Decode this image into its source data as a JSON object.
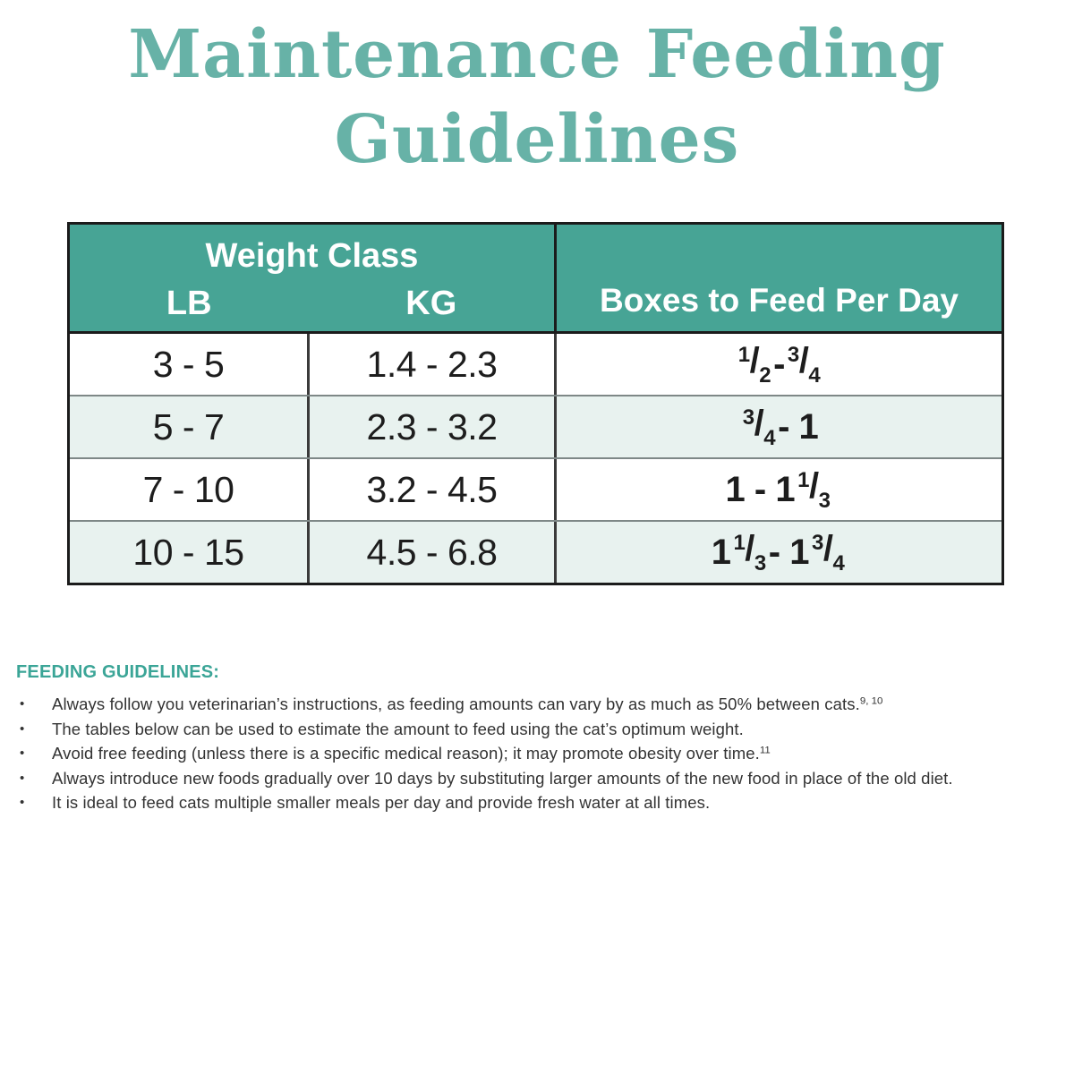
{
  "title": {
    "line1": "Maintenance Feeding",
    "line2": "Guidelines"
  },
  "colors": {
    "title_teal": "#67b2a7",
    "header_teal": "#47a495",
    "alt_row": "#e8f2ef",
    "guidelines_teal": "#3ba597",
    "body_text": "#333333",
    "table_border": "#1b1b1b"
  },
  "table": {
    "header": {
      "weight_class": "Weight Class",
      "lb": "LB",
      "kg": "KG",
      "boxes": "Boxes to Feed Per Day"
    },
    "rows": [
      {
        "lb": "3 - 5",
        "kg": "1.4 - 2.3",
        "boxes_plain": "1/2 - 3/4",
        "boxes": [
          {
            "frac": [
              "1",
              "2"
            ]
          },
          {
            "text": " - "
          },
          {
            "frac": [
              "3",
              "4"
            ]
          }
        ]
      },
      {
        "lb": "5 - 7",
        "kg": "2.3 - 3.2",
        "boxes_plain": "3/4 - 1",
        "boxes": [
          {
            "frac": [
              "3",
              "4"
            ]
          },
          {
            "text": " - 1"
          }
        ]
      },
      {
        "lb": "7 - 10",
        "kg": "3.2 - 4.5",
        "boxes_plain": "1 - 1 1/3",
        "boxes": [
          {
            "text": "1 - 1"
          },
          {
            "frac": [
              "1",
              "3"
            ]
          }
        ]
      },
      {
        "lb": "10 - 15",
        "kg": "4.5 - 6.8",
        "boxes_plain": "1 1/3 - 1 3/4",
        "boxes": [
          {
            "text": "1"
          },
          {
            "frac": [
              "1",
              "3"
            ]
          },
          {
            "text": " - 1"
          },
          {
            "frac": [
              "3",
              "4"
            ]
          }
        ]
      }
    ]
  },
  "guidelines": {
    "heading": "FEEDING GUIDELINES:",
    "bullets": [
      {
        "text": "Always follow you veterinarian’s instructions, as feeding amounts can vary by as much as 50% between cats.",
        "sup": "9, 10"
      },
      {
        "text": "The tables below can be used to estimate the amount to feed using the cat’s optimum weight.",
        "sup": ""
      },
      {
        "text": "Avoid free feeding (unless there is a specific medical reason); it may promote obesity over time.",
        "sup": "11"
      },
      {
        "text": "Always introduce new foods gradually over 10 days by substituting larger amounts of the new food in place of the old diet.",
        "sup": ""
      },
      {
        "text": "It is ideal to feed cats multiple smaller meals per day and provide fresh water at all times.",
        "sup": ""
      }
    ]
  }
}
